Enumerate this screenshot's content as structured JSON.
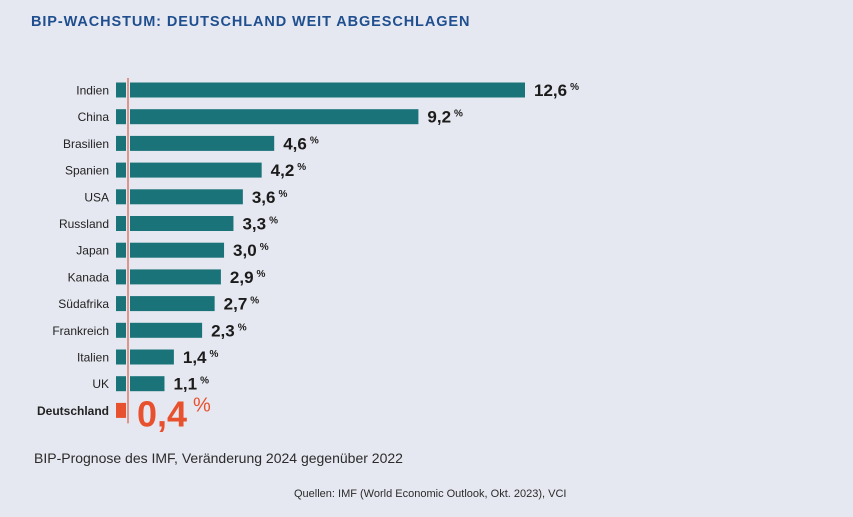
{
  "header": {
    "title": "BIP-WACHSTUM: DEUTSCHLAND WEIT ABGESCHLAGEN"
  },
  "chart_data": {
    "type": "bar",
    "orientation": "horizontal",
    "title": "BIP-WACHSTUM: DEUTSCHLAND WEIT ABGESCHLAGEN",
    "subtitle": "BIP-Prognose des IMF, Veränderung 2024 gegenüber 2022",
    "unit": "%",
    "categories": [
      "Indien",
      "China",
      "Brasilien",
      "Spanien",
      "USA",
      "Russland",
      "Japan",
      "Kanada",
      "Südafrika",
      "Frankreich",
      "Italien",
      "UK",
      "Deutschland"
    ],
    "values": [
      12.6,
      9.2,
      4.6,
      4.2,
      3.6,
      3.3,
      3.0,
      2.9,
      2.7,
      2.3,
      1.4,
      1.1,
      0.4
    ],
    "value_labels": [
      "12,6",
      "9,2",
      "4,6",
      "4,2",
      "3,6",
      "3,3",
      "3,0",
      "2,9",
      "2,7",
      "2,3",
      "1,4",
      "1,1",
      "0,4"
    ],
    "highlight_category": "Deutschland",
    "xlim": [
      0,
      12.6
    ],
    "grid": false,
    "colors": {
      "bar": "#1a7379",
      "highlight": "#e8512e",
      "reference_line": "#d97a6a"
    }
  },
  "footer": {
    "subtitle": "BIP-Prognose des IMF, Veränderung 2024 gegenüber 2022",
    "source": "Quellen: IMF (World Economic Outlook, Okt. 2023), VCI"
  }
}
